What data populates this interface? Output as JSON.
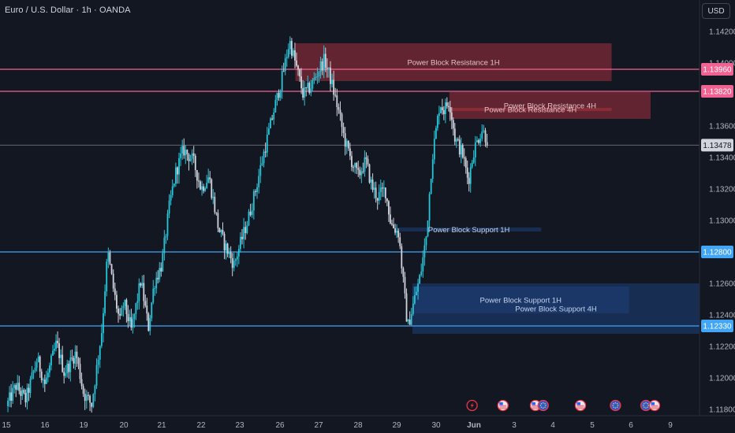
{
  "header": {
    "title": "Euro / U.S. Dollar · 1h · OANDA"
  },
  "currency_button": "USD",
  "colors": {
    "background": "#131722",
    "bull_candle": "#26c6da",
    "bear_candle": "#d1d4dc",
    "resistance_line": "#f06292",
    "support_line": "#42a5f5",
    "resistance_zone": "#b2323f",
    "support_zone": "#1e3f7a",
    "current_price_line": "#787b86"
  },
  "chart_data": {
    "type": "candlestick",
    "symbol": "EURUSD",
    "timeframe": "1h",
    "ylim": [
      1.1175,
      1.1435
    ],
    "y_ticks": [
      "1.11800",
      "1.12000",
      "1.12200",
      "1.12400",
      "1.12600",
      "1.13000",
      "1.13200",
      "1.13400",
      "1.13600",
      "1.14000",
      "1.14200"
    ],
    "x_ticks": [
      {
        "label": "15",
        "day": 0
      },
      {
        "label": "16",
        "day": 1
      },
      {
        "label": "19",
        "day": 2
      },
      {
        "label": "20",
        "day": 3
      },
      {
        "label": "21",
        "day": 4
      },
      {
        "label": "22",
        "day": 5
      },
      {
        "label": "23",
        "day": 6
      },
      {
        "label": "26",
        "day": 7
      },
      {
        "label": "27",
        "day": 8
      },
      {
        "label": "28",
        "day": 9
      },
      {
        "label": "29",
        "day": 10
      },
      {
        "label": "30",
        "day": 11
      },
      {
        "label": "Jun",
        "day": 12
      },
      {
        "label": "3",
        "day": 13
      },
      {
        "label": "4",
        "day": 14
      },
      {
        "label": "5",
        "day": 15
      },
      {
        "label": "6",
        "day": 16
      },
      {
        "label": "9",
        "day": 17
      }
    ],
    "levels": [
      {
        "name": "resistance-1",
        "price": 1.1396,
        "label": "1.13960",
        "kind": "resistance"
      },
      {
        "name": "resistance-2",
        "price": 1.1382,
        "label": "1.13820",
        "kind": "resistance"
      },
      {
        "name": "support-1",
        "price": 1.128,
        "label": "1.12800",
        "kind": "support"
      },
      {
        "name": "support-2",
        "price": 1.1233,
        "label": "1.12330",
        "kind": "support"
      }
    ],
    "current_price": {
      "price": 1.13478,
      "label": "1.13478"
    },
    "zones": [
      {
        "label": "Power Block Resistance  1H",
        "kind": "resistance",
        "day_start": 7.4,
        "day_end": 15.5,
        "top": 1.14125,
        "bottom": 1.13885
      },
      {
        "label": "Power Block Resistance  4H",
        "kind": "resistance",
        "day_start": 11.35,
        "day_end": 16.5,
        "top": 1.13815,
        "bottom": 1.13645
      },
      {
        "label": "Power Block Resistance  4H",
        "kind": "resistance",
        "day_start": 11.35,
        "day_end": 15.5,
        "top": 1.13715,
        "bottom": 1.13695
      },
      {
        "label": "Power Block Support 1H",
        "kind": "support",
        "day_start": 10.0,
        "day_end": 13.7,
        "top": 1.12955,
        "bottom": 1.1293
      },
      {
        "label": "Power Block Support 1H",
        "kind": "support",
        "day_start": 10.4,
        "day_end": 15.95,
        "top": 1.1258,
        "bottom": 1.1241
      },
      {
        "label": "Power Block Support 4H",
        "kind": "support",
        "day_start": 10.4,
        "day_end": 18.0,
        "top": 1.126,
        "bottom": 1.1228
      }
    ],
    "path": [
      [
        0.0,
        1.1182
      ],
      [
        0.25,
        1.1195
      ],
      [
        0.5,
        1.1186
      ],
      [
        0.8,
        1.1212
      ],
      [
        1.0,
        1.1196
      ],
      [
        1.3,
        1.1222
      ],
      [
        1.5,
        1.1203
      ],
      [
        1.8,
        1.1216
      ],
      [
        2.0,
        1.119
      ],
      [
        2.2,
        1.1183
      ],
      [
        2.45,
        1.123
      ],
      [
        2.6,
        1.128
      ],
      [
        2.75,
        1.1255
      ],
      [
        2.9,
        1.1235
      ],
      [
        3.0,
        1.1248
      ],
      [
        3.2,
        1.123
      ],
      [
        3.45,
        1.1262
      ],
      [
        3.65,
        1.1232
      ],
      [
        3.8,
        1.126
      ],
      [
        4.0,
        1.1272
      ],
      [
        4.2,
        1.131
      ],
      [
        4.35,
        1.133
      ],
      [
        4.55,
        1.1345
      ],
      [
        4.8,
        1.1338
      ],
      [
        5.0,
        1.132
      ],
      [
        5.2,
        1.1328
      ],
      [
        5.45,
        1.1295
      ],
      [
        5.6,
        1.1285
      ],
      [
        5.85,
        1.1272
      ],
      [
        6.0,
        1.1284
      ],
      [
        6.2,
        1.13
      ],
      [
        6.4,
        1.132
      ],
      [
        6.6,
        1.1343
      ],
      [
        6.85,
        1.137
      ],
      [
        7.05,
        1.139
      ],
      [
        7.25,
        1.1414
      ],
      [
        7.45,
        1.1395
      ],
      [
        7.6,
        1.138
      ],
      [
        7.8,
        1.1385
      ],
      [
        8.05,
        1.1398
      ],
      [
        8.15,
        1.1402
      ],
      [
        8.3,
        1.139
      ],
      [
        8.5,
        1.137
      ],
      [
        8.65,
        1.1352
      ],
      [
        8.8,
        1.134
      ],
      [
        9.0,
        1.1328
      ],
      [
        9.2,
        1.1338
      ],
      [
        9.35,
        1.1322
      ],
      [
        9.5,
        1.1315
      ],
      [
        9.7,
        1.132
      ],
      [
        9.85,
        1.1298
      ],
      [
        10.05,
        1.1292
      ],
      [
        10.2,
        1.1252
      ],
      [
        10.28,
        1.1232
      ],
      [
        10.45,
        1.125
      ],
      [
        10.6,
        1.1265
      ],
      [
        10.75,
        1.129
      ],
      [
        10.9,
        1.134
      ],
      [
        11.1,
        1.1375
      ],
      [
        11.2,
        1.137
      ],
      [
        11.35,
        1.1376
      ],
      [
        11.5,
        1.1352
      ],
      [
        11.7,
        1.1342
      ],
      [
        11.85,
        1.1325
      ],
      [
        12.0,
        1.1345
      ],
      [
        12.2,
        1.1358
      ],
      [
        12.35,
        1.135
      ]
    ],
    "time_events": [
      {
        "day": 11.95,
        "icon": "lightning-icon"
      },
      {
        "day": 12.72,
        "icon": "us-flag-icon"
      },
      {
        "day": 13.55,
        "icon": "us-flag-icon"
      },
      {
        "day": 13.75,
        "icon": "eu-flag-icon"
      },
      {
        "day": 14.7,
        "icon": "us-flag-icon"
      },
      {
        "day": 15.6,
        "icon": "eu-flag-icon"
      },
      {
        "day": 16.38,
        "icon": "eu-flag-icon"
      },
      {
        "day": 16.6,
        "icon": "us-flag-icon"
      }
    ]
  }
}
